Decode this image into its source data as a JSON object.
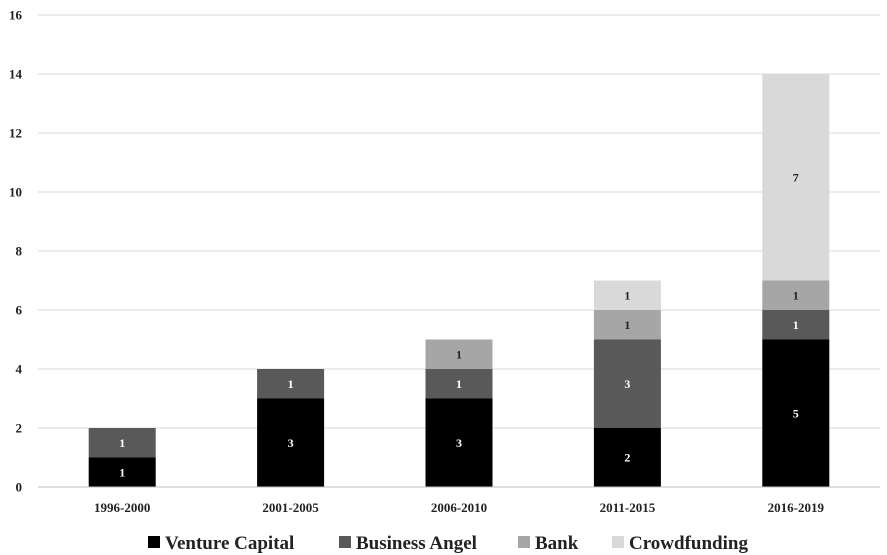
{
  "chart_data": {
    "type": "bar",
    "stacked": true,
    "categories": [
      "1996-2000",
      "2001-2005",
      "2006-2010",
      "2011-2015",
      "2016-2019"
    ],
    "series": [
      {
        "name": "Venture Capital",
        "values": [
          1,
          3,
          3,
          2,
          5
        ],
        "color": "#000000",
        "label_color": "#ffffff"
      },
      {
        "name": "Business Angel",
        "values": [
          1,
          1,
          1,
          3,
          1
        ],
        "color": "#595959",
        "label_color": "#ffffff"
      },
      {
        "name": "Bank",
        "values": [
          0,
          0,
          1,
          1,
          1
        ],
        "color": "#a6a6a6",
        "label_color": "#222222"
      },
      {
        "name": "Crowdfunding",
        "values": [
          0,
          0,
          0,
          1,
          7
        ],
        "color": "#d9d9d9",
        "label_color": "#222222"
      }
    ],
    "title": "",
    "xlabel": "",
    "ylabel": "",
    "ylim": [
      0,
      16
    ],
    "yticks": [
      0,
      2,
      4,
      6,
      8,
      10,
      12,
      14,
      16
    ],
    "grid": true,
    "legend_position": "bottom"
  }
}
